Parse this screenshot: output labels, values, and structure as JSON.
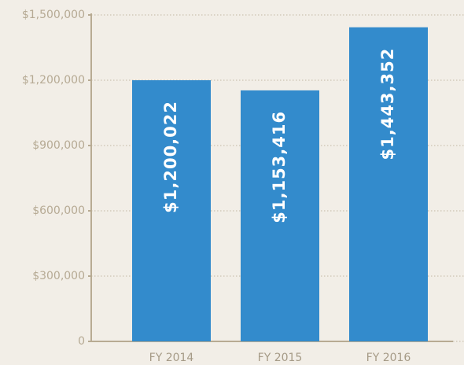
{
  "chart_data": {
    "type": "bar",
    "categories": [
      "FY 2014",
      "FY 2015",
      "FY 2016"
    ],
    "values": [
      1200022,
      1153416,
      1443352
    ],
    "value_labels": [
      "$1,200,022",
      "$1,153,416",
      "$1,443,352"
    ],
    "color": "#338bcc",
    "ylim": [
      0,
      1500000
    ],
    "yticks": [
      0,
      {
        "value": 300000,
        "label": "$300,000"
      },
      {
        "value": 600000,
        "label": "$600,000"
      },
      {
        "value": 900000,
        "label": "$900,000"
      },
      {
        "value": 1200000,
        "label": "$1,200,000"
      },
      {
        "value": 1500000,
        "label": "$1,500,000"
      }
    ],
    "grid": true
  }
}
